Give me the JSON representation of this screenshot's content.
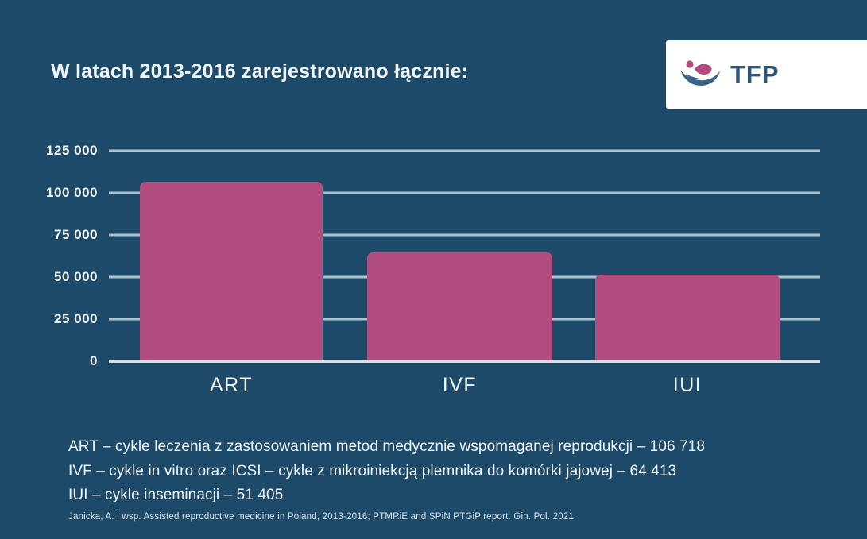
{
  "header": {
    "title": "W latach 2013-2016 zarejestrowano łącznie:",
    "logo_text": "TFP"
  },
  "chart_data": {
    "type": "bar",
    "title": "W latach 2013-2016 zarejestrowano łącznie:",
    "categories": [
      "ART",
      "IVF",
      "IUI"
    ],
    "values": [
      106718,
      64413,
      51405
    ],
    "xlabel": "",
    "ylabel": "",
    "ylim": [
      0,
      125000
    ],
    "ytick_values": [
      125000,
      100000,
      75000,
      50000,
      25000,
      0
    ],
    "ytick_labels": [
      "125 000",
      "100 000",
      "75 000",
      "50 000",
      "25 000",
      "0"
    ],
    "grid": true,
    "legend_position": "none",
    "bar_color": "#b14d7f",
    "background_color": "#1d4a69",
    "gridline_color": "#aec2cd",
    "axis_line_color": "#d5dfe5",
    "text_color": "#f3f6f8"
  },
  "legend": {
    "lines": [
      "ART – cykle leczenia z zastosowaniem metod medycznie wspomaganej reprodukcji – 106 718",
      "IVF – cykle in vitro oraz ICSI – cykle z mikroiniekcją plemnika do komórki jajowej – 64 413",
      "IUI – cykle inseminacji – 51 405"
    ]
  },
  "footer": {
    "citation": "Janicka, A. i wsp. Assisted reproductive medicine in Poland, 2013-2016; PTMRiE and SPiN PTGiP report. Gin. Pol. 2021"
  },
  "logo_colors": {
    "crescent_blue": "#38648c",
    "figure_magenta": "#b5487f",
    "text_blue": "#2e577e"
  }
}
